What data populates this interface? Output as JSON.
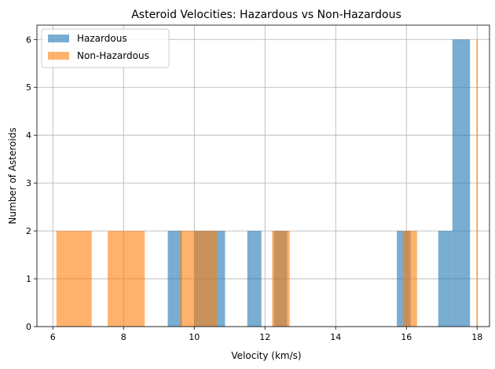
{
  "chart_data": {
    "type": "bar",
    "title": "Asteroid Velocities: Hazardous vs Non-Hazardous",
    "xlabel": "Velocity (km/s)",
    "ylabel": "Number of Asteroids",
    "xlim": [
      5.55,
      18.35
    ],
    "ylim": [
      0,
      6.3
    ],
    "xticks": [
      6,
      8,
      10,
      12,
      14,
      16,
      18
    ],
    "yticks": [
      0,
      1,
      2,
      3,
      4,
      5,
      6
    ],
    "grid": true,
    "legend_position": "top-left",
    "series": [
      {
        "name": "Hazardous",
        "color": "#1f77b4",
        "opacity": 0.6,
        "bins": [
          {
            "x0": 9.25,
            "x1": 9.65,
            "count": 2
          },
          {
            "x0": 10.0,
            "x1": 10.87,
            "count": 2
          },
          {
            "x0": 11.5,
            "x1": 11.9,
            "count": 2
          },
          {
            "x0": 12.25,
            "x1": 12.63,
            "count": 2
          },
          {
            "x0": 15.73,
            "x1": 16.12,
            "count": 2
          },
          {
            "x0": 16.9,
            "x1": 17.3,
            "count": 2
          },
          {
            "x0": 17.3,
            "x1": 17.8,
            "count": 6
          }
        ]
      },
      {
        "name": "Non-Hazardous",
        "color": "#ff7f0e",
        "opacity": 0.6,
        "bins": [
          {
            "x0": 6.1,
            "x1": 7.1,
            "count": 2
          },
          {
            "x0": 7.55,
            "x1": 8.6,
            "count": 2
          },
          {
            "x0": 9.6,
            "x1": 10.65,
            "count": 2
          },
          {
            "x0": 12.2,
            "x1": 12.7,
            "count": 2
          },
          {
            "x0": 15.9,
            "x1": 16.3,
            "count": 2
          },
          {
            "x0": 17.98,
            "x1": 18.02,
            "count": 6
          }
        ]
      }
    ]
  }
}
